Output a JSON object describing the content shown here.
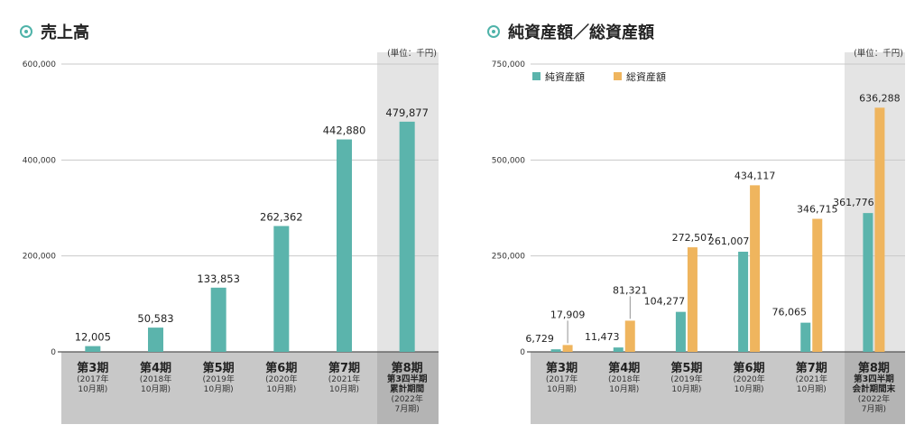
{
  "chart_data": [
    {
      "type": "bar",
      "title": "売上高",
      "unit": "(単位：千円)",
      "ylim": [
        0,
        600000
      ],
      "yticks": [
        "600,000",
        "400,000",
        "200,000",
        "0"
      ],
      "ytick_values": [
        600000,
        400000,
        200000,
        0
      ],
      "categories": [
        {
          "period": "第3期",
          "lines": [
            "(2017年",
            "10月期)"
          ]
        },
        {
          "period": "第4期",
          "lines": [
            "(2018年",
            "10月期)"
          ]
        },
        {
          "period": "第5期",
          "lines": [
            "(2019年",
            "10月期)"
          ]
        },
        {
          "period": "第6期",
          "lines": [
            "(2020年",
            "10月期)"
          ]
        },
        {
          "period": "第7期",
          "lines": [
            "(2021年",
            "10月期)"
          ]
        },
        {
          "period": "第8期",
          "sub": [
            "第3四半期",
            "累計期間"
          ],
          "lines": [
            "(2022年",
            "7月期)"
          ]
        }
      ],
      "series": [
        {
          "color": "#5bb4ac",
          "values": [
            12005,
            50583,
            133853,
            262362,
            442880,
            479877
          ],
          "labels": [
            "12,005",
            "50,583",
            "133,853",
            "262,362",
            "442,880",
            "479,877"
          ]
        }
      ],
      "highlight_last": true,
      "grid": true
    },
    {
      "type": "bar",
      "title": "純資産額／総資産額",
      "unit": "(単位：千円)",
      "ylim": [
        0,
        750000
      ],
      "yticks": [
        "750,000",
        "500,000",
        "250,000",
        "0"
      ],
      "ytick_values": [
        750000,
        500000,
        250000,
        0
      ],
      "legend_position": "top-left",
      "categories": [
        {
          "period": "第3期",
          "lines": [
            "(2017年",
            "10月期)"
          ]
        },
        {
          "period": "第4期",
          "lines": [
            "(2018年",
            "10月期)"
          ]
        },
        {
          "period": "第5期",
          "lines": [
            "(2019年",
            "10月期)"
          ]
        },
        {
          "period": "第6期",
          "lines": [
            "(2020年",
            "10月期)"
          ]
        },
        {
          "period": "第7期",
          "lines": [
            "(2021年",
            "10月期)"
          ]
        },
        {
          "period": "第8期",
          "sub": [
            "第3四半期",
            "会計期間末"
          ],
          "lines": [
            "(2022年",
            "7月期)"
          ]
        }
      ],
      "series": [
        {
          "name": "純資産額",
          "color": "#5bb4ac",
          "values": [
            6729,
            11473,
            104277,
            261007,
            76065,
            361776
          ],
          "labels": [
            "6,729",
            "11,473",
            "104,277",
            "261,007",
            "76,065",
            "361,776"
          ]
        },
        {
          "name": "総資産額",
          "color": "#efb55e",
          "values": [
            17909,
            81321,
            272507,
            434117,
            346715,
            636288
          ],
          "labels": [
            "17,909",
            "81,321",
            "272,507",
            "434,117",
            "346,715",
            "636,288"
          ]
        }
      ],
      "highlight_last": true,
      "grid": true
    }
  ]
}
